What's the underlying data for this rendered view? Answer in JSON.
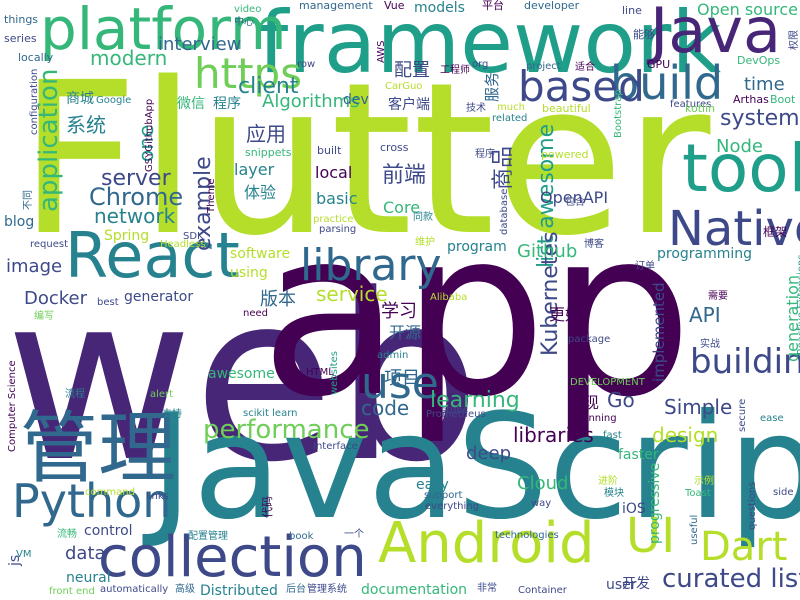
{
  "palette": {
    "dark_purple": "#440154",
    "purple": "#482677",
    "indigo": "#3e4989",
    "blue": "#31688e",
    "teal": "#26828e",
    "green_teal": "#1f9e89",
    "green": "#35b779",
    "light_green": "#6ece58",
    "yellow_green": "#b5de2b"
  },
  "words": [
    {
      "text": "Flutter",
      "color": "#b5de2b",
      "vertical": false
    },
    {
      "text": "web",
      "color": "#482677",
      "vertical": false
    },
    {
      "text": "app",
      "color": "#440154",
      "vertical": false
    },
    {
      "text": "JavaScript",
      "color": "#26828e",
      "vertical": false
    },
    {
      "text": "framework",
      "color": "#1f9e89",
      "vertical": false
    },
    {
      "text": "管理",
      "color": "#31688e",
      "vertical": false
    },
    {
      "text": "platform",
      "color": "#35b779",
      "vertical": false
    },
    {
      "text": "Java",
      "color": "#482677",
      "vertical": false
    },
    {
      "text": "React",
      "color": "#26828e",
      "vertical": false
    },
    {
      "text": "tool",
      "color": "#1f9e89",
      "vertical": false
    },
    {
      "text": "Android",
      "color": "#b5de2b",
      "vertical": false
    },
    {
      "text": "collection",
      "color": "#3e4989",
      "vertical": false
    },
    {
      "text": "Native",
      "color": "#3e4989",
      "vertical": false
    },
    {
      "text": "library",
      "color": "#31688e",
      "vertical": false
    },
    {
      "text": "Python",
      "color": "#31688e",
      "vertical": false
    },
    {
      "text": "build",
      "color": "#31688e",
      "vertical": false
    },
    {
      "text": "https",
      "color": "#6ece58",
      "vertical": false
    },
    {
      "text": "based",
      "color": "#3e4989",
      "vertical": false
    },
    {
      "text": "use",
      "color": "#31688e",
      "vertical": false
    },
    {
      "text": "UI",
      "color": "#b5de2b",
      "vertical": false
    },
    {
      "text": "Dart",
      "color": "#b5de2b",
      "vertical": false
    },
    {
      "text": "building",
      "color": "#3e4989",
      "vertical": false
    },
    {
      "text": "curated list",
      "color": "#3e4989",
      "vertical": false
    },
    {
      "text": "performance",
      "color": "#6ece58",
      "vertical": false
    },
    {
      "text": "application",
      "color": "#35b779",
      "vertical": true
    },
    {
      "text": "list awesome",
      "color": "#1f9e89",
      "vertical": true
    },
    {
      "text": "Kubernetes",
      "color": "#3e4989",
      "vertical": true
    },
    {
      "text": "Chrome",
      "color": "#31688e",
      "vertical": false
    },
    {
      "text": "server",
      "color": "#3e4989",
      "vertical": false
    },
    {
      "text": "network",
      "color": "#26828e",
      "vertical": false
    },
    {
      "text": "modern",
      "color": "#35b779",
      "vertical": false
    },
    {
      "text": "interview",
      "color": "#31688e",
      "vertical": false
    },
    {
      "text": "client",
      "color": "#26828e",
      "vertical": false
    },
    {
      "text": "Algorithms",
      "color": "#35b779",
      "vertical": false
    },
    {
      "text": "system",
      "color": "#3e4989",
      "vertical": false
    },
    {
      "text": "time",
      "color": "#31688e",
      "vertical": false
    },
    {
      "text": "Node",
      "color": "#35b779",
      "vertical": false
    },
    {
      "text": "example",
      "color": "#3e4989",
      "vertical": true
    },
    {
      "text": "one",
      "color": "#1f9e89",
      "vertical": true
    },
    {
      "text": "service",
      "color": "#b5de2b",
      "vertical": false
    },
    {
      "text": "learning",
      "color": "#35b779",
      "vertical": false
    },
    {
      "text": "Go",
      "color": "#3e4989",
      "vertical": false
    },
    {
      "text": "code",
      "color": "#31688e",
      "vertical": false
    },
    {
      "text": "libraries",
      "color": "#440154",
      "vertical": false
    },
    {
      "text": "design",
      "color": "#b5de2b",
      "vertical": false
    },
    {
      "text": "Simple",
      "color": "#3e4989",
      "vertical": false
    },
    {
      "text": "data",
      "color": "#3e4989",
      "vertical": false
    },
    {
      "text": "Docker",
      "color": "#3e4989",
      "vertical": false
    },
    {
      "text": "image",
      "color": "#3e4989",
      "vertical": false
    },
    {
      "text": "API",
      "color": "#31688e",
      "vertical": false
    },
    {
      "text": "Github",
      "color": "#35b779",
      "vertical": false
    },
    {
      "text": "Cloud",
      "color": "#35b779",
      "vertical": false
    },
    {
      "text": "deep",
      "color": "#3e4989",
      "vertical": false
    },
    {
      "text": "generation",
      "color": "#35b779",
      "vertical": true
    },
    {
      "text": "implemented",
      "color": "#3e4989",
      "vertical": true
    },
    {
      "text": "progressive",
      "color": "#35b779",
      "vertical": true
    },
    {
      "text": "前端",
      "color": "#3e4989",
      "vertical": false
    },
    {
      "text": "商品",
      "color": "#3e4989",
      "vertical": true
    },
    {
      "text": "应用",
      "color": "#3e4989",
      "vertical": false
    },
    {
      "text": "系统",
      "color": "#26828e",
      "vertical": false
    },
    {
      "text": "配置",
      "color": "#3e4989",
      "vertical": false
    },
    {
      "text": "版本",
      "color": "#31688e",
      "vertical": false
    },
    {
      "text": "学习",
      "color": "#440154",
      "vertical": false
    },
    {
      "text": "项目",
      "color": "#31688e",
      "vertical": false
    },
    {
      "text": "体验",
      "color": "#26828e",
      "vertical": false
    },
    {
      "text": "开源",
      "color": "#31688e",
      "vertical": false
    },
    {
      "text": "更好",
      "color": "#440154",
      "vertical": false
    },
    {
      "text": "实现",
      "color": "#440154",
      "vertical": false
    },
    {
      "text": "服务",
      "color": "#31688e",
      "vertical": true
    },
    {
      "text": "Core",
      "color": "#35b779",
      "vertical": false
    },
    {
      "text": "OpenAPI",
      "color": "#3e4989",
      "vertical": false
    },
    {
      "text": "basic",
      "color": "#26828e",
      "vertical": false
    },
    {
      "text": "local",
      "color": "#440154",
      "vertical": false
    },
    {
      "text": "layer",
      "color": "#26828e",
      "vertical": false
    },
    {
      "text": "Open source",
      "color": "#35b779",
      "vertical": false
    },
    {
      "text": "models",
      "color": "#26828e",
      "vertical": false
    },
    {
      "text": "dev",
      "color": "#31688e",
      "vertical": false
    },
    {
      "text": "software",
      "color": "#b5de2b",
      "vertical": false
    },
    {
      "text": "using",
      "color": "#b5de2b",
      "vertical": false
    },
    {
      "text": "generator",
      "color": "#3e4989",
      "vertical": false
    },
    {
      "text": "awesome",
      "color": "#35b779",
      "vertical": false
    },
    {
      "text": "program",
      "color": "#26828e",
      "vertical": false
    },
    {
      "text": "programming",
      "color": "#26828e",
      "vertical": false
    },
    {
      "text": "faster",
      "color": "#35b779",
      "vertical": false
    },
    {
      "text": "easy",
      "color": "#26828e",
      "vertical": false
    },
    {
      "text": "iOS",
      "color": "#3e4989",
      "vertical": false
    },
    {
      "text": "user",
      "color": "#3e4989",
      "vertical": false
    },
    {
      "text": "neural",
      "color": "#26828e",
      "vertical": false
    },
    {
      "text": "control",
      "color": "#3e4989",
      "vertical": false
    },
    {
      "text": "documentation",
      "color": "#35b779",
      "vertical": false
    },
    {
      "text": "Distributed",
      "color": "#26828e",
      "vertical": false
    },
    {
      "text": "js",
      "color": "#3e4989",
      "vertical": false
    },
    {
      "text": "开发",
      "color": "#3e4989",
      "vertical": false
    },
    {
      "text": "Spring",
      "color": "#b5de2b",
      "vertical": false
    },
    {
      "text": "blog",
      "color": "#31688e",
      "vertical": false
    },
    {
      "text": "客户端",
      "color": "#3e4989",
      "vertical": false
    },
    {
      "text": "商城",
      "color": "#26828e",
      "vertical": false
    },
    {
      "text": "微信",
      "color": "#35b779",
      "vertical": false
    },
    {
      "text": "程序",
      "color": "#26828e",
      "vertical": false
    },
    {
      "text": "features",
      "color": "#3e4989",
      "vertical": false
    },
    {
      "text": "Boot",
      "color": "#35b779",
      "vertical": false
    },
    {
      "text": "Arthas",
      "color": "#440154",
      "vertical": false
    },
    {
      "text": "kotlin",
      "color": "#6ece58",
      "vertical": false
    },
    {
      "text": "DevOps",
      "color": "#35b779",
      "vertical": false
    },
    {
      "text": "GPU",
      "color": "#440154",
      "vertical": false
    },
    {
      "text": "能够",
      "color": "#3e4989",
      "vertical": false
    },
    {
      "text": "line",
      "color": "#3e4989",
      "vertical": false
    },
    {
      "text": "平台",
      "color": "#440154",
      "vertical": false
    },
    {
      "text": "developer",
      "color": "#31688e",
      "vertical": false
    },
    {
      "text": "Vue",
      "color": "#440154",
      "vertical": false
    },
    {
      "text": "management",
      "color": "#31688e",
      "vertical": false
    },
    {
      "text": "video",
      "color": "#35b779",
      "vertical": false
    },
    {
      "text": "中心",
      "color": "#31688e",
      "vertical": false
    },
    {
      "text": "things",
      "color": "#31688e",
      "vertical": false
    },
    {
      "text": "series",
      "color": "#3e4989",
      "vertical": false
    },
    {
      "text": "locally",
      "color": "#31688e",
      "vertical": false
    },
    {
      "text": "Google",
      "color": "#26828e",
      "vertical": false
    },
    {
      "text": "snippets",
      "color": "#35b779",
      "vertical": false
    },
    {
      "text": "built",
      "color": "#3e4989",
      "vertical": false
    },
    {
      "text": "cross",
      "color": "#3e4989",
      "vertical": false
    },
    {
      "text": "powered",
      "color": "#b5de2b",
      "vertical": false
    },
    {
      "text": "beautiful",
      "color": "#b5de2b",
      "vertical": false
    },
    {
      "text": "related",
      "color": "#26828e",
      "vertical": false
    },
    {
      "text": "much",
      "color": "#b5de2b",
      "vertical": false
    },
    {
      "text": "技术",
      "color": "#3e4989",
      "vertical": false
    },
    {
      "text": "project",
      "color": "#31688e",
      "vertical": false
    },
    {
      "text": "适合",
      "color": "#440154",
      "vertical": false
    },
    {
      "text": "工程师",
      "color": "#440154",
      "vertical": false
    },
    {
      "text": "org",
      "color": "#3e4989",
      "vertical": false
    },
    {
      "text": "CarGuo",
      "color": "#b5de2b",
      "vertical": false
    },
    {
      "text": "row",
      "color": "#3e4989",
      "vertical": false
    },
    {
      "text": "practice",
      "color": "#b5de2b",
      "vertical": false
    },
    {
      "text": "parsing",
      "color": "#3e4989",
      "vertical": false
    },
    {
      "text": "同款",
      "color": "#26828e",
      "vertical": false
    },
    {
      "text": "维护",
      "color": "#b5de2b",
      "vertical": false
    },
    {
      "text": "博客",
      "color": "#3e4989",
      "vertical": false
    },
    {
      "text": "订单",
      "color": "#3e4989",
      "vertical": false
    },
    {
      "text": "包含",
      "color": "#3e4989",
      "vertical": false
    },
    {
      "text": "框架",
      "color": "#440154",
      "vertical": false
    },
    {
      "text": "request",
      "color": "#3e4989",
      "vertical": false
    },
    {
      "text": "SDK",
      "color": "#3e4989",
      "vertical": false
    },
    {
      "text": "Headless",
      "color": "#b5de2b",
      "vertical": false
    },
    {
      "text": "best",
      "color": "#3e4989",
      "vertical": false
    },
    {
      "text": "need",
      "color": "#440154",
      "vertical": false
    },
    {
      "text": "日常",
      "color": "#440154",
      "vertical": false
    },
    {
      "text": "需要",
      "color": "#440154",
      "vertical": false
    },
    {
      "text": "Alibaba",
      "color": "#b5de2b",
      "vertical": false
    },
    {
      "text": "编写",
      "color": "#6ece58",
      "vertical": false
    },
    {
      "text": "package",
      "color": "#3e4989",
      "vertical": false
    },
    {
      "text": "实战",
      "color": "#3e4989",
      "vertical": false
    },
    {
      "text": "admin",
      "color": "#26828e",
      "vertical": false
    },
    {
      "text": "websites",
      "color": "#1f9e89",
      "vertical": true
    },
    {
      "text": "HTML",
      "color": "#440154",
      "vertical": false
    },
    {
      "text": "alert",
      "color": "#6ece58",
      "vertical": false
    },
    {
      "text": "流程",
      "color": "#26828e",
      "vertical": false
    },
    {
      "text": "支持",
      "color": "#26828e",
      "vertical": false
    },
    {
      "text": "DEVELOPMENT",
      "color": "#6ece58",
      "vertical": false
    },
    {
      "text": "stubs",
      "color": "#3e4989",
      "vertical": false
    },
    {
      "text": "running",
      "color": "#440154",
      "vertical": false
    },
    {
      "text": "fast",
      "color": "#26828e",
      "vertical": false
    },
    {
      "text": "ease",
      "color": "#26828e",
      "vertical": false
    },
    {
      "text": "Prometheus",
      "color": "#3e4989",
      "vertical": false
    },
    {
      "text": "scikit learn",
      "color": "#26828e",
      "vertical": false
    },
    {
      "text": "Interface",
      "color": "#3e4989",
      "vertical": false
    },
    {
      "text": "everything",
      "color": "#3e4989",
      "vertical": false
    },
    {
      "text": "support",
      "color": "#31688e",
      "vertical": false
    },
    {
      "text": "way",
      "color": "#3e4989",
      "vertical": false
    },
    {
      "text": "模块",
      "color": "#26828e",
      "vertical": false
    },
    {
      "text": "进阶",
      "color": "#b5de2b",
      "vertical": false
    },
    {
      "text": "示例",
      "color": "#b5de2b",
      "vertical": false
    },
    {
      "text": "Toast",
      "color": "#35b779",
      "vertical": false
    },
    {
      "text": "questions",
      "color": "#3e4989",
      "vertical": true
    },
    {
      "text": "secure",
      "color": "#3e4989",
      "vertical": true
    },
    {
      "text": "side",
      "color": "#3e4989",
      "vertical": false
    },
    {
      "text": "links",
      "color": "#3e4989",
      "vertical": false
    },
    {
      "text": "command",
      "color": "#b5de2b",
      "vertical": false
    },
    {
      "text": "代码",
      "color": "#440154",
      "vertical": true
    },
    {
      "text": "book",
      "color": "#31688e",
      "vertical": false
    },
    {
      "text": "一个",
      "color": "#3e4989",
      "vertical": false
    },
    {
      "text": "technologies",
      "color": "#31688e",
      "vertical": false
    },
    {
      "text": "Container",
      "color": "#3e4989",
      "vertical": false
    },
    {
      "text": "非常",
      "color": "#3e4989",
      "vertical": false
    },
    {
      "text": "管理系统",
      "color": "#3e4989",
      "vertical": false
    },
    {
      "text": "后台",
      "color": "#31688e",
      "vertical": false
    },
    {
      "text": "高级",
      "color": "#31688e",
      "vertical": false
    },
    {
      "text": "automatically",
      "color": "#3e4989",
      "vertical": false
    },
    {
      "text": "front end",
      "color": "#6ece58",
      "vertical": false
    },
    {
      "text": "配置管理",
      "color": "#26828e",
      "vertical": false
    },
    {
      "text": "流畅",
      "color": "#35b779",
      "vertical": false
    },
    {
      "text": "VM",
      "color": "#26828e",
      "vertical": false
    },
    {
      "text": "useful",
      "color": "#31688e",
      "vertical": true
    },
    {
      "text": "Reactive Extensions",
      "color": "#1f9e89",
      "vertical": true
    },
    {
      "text": "Computer Science",
      "color": "#440154",
      "vertical": true
    },
    {
      "text": "configuration",
      "color": "#3e4989",
      "vertical": true
    },
    {
      "text": "GSYGithubApp",
      "color": "#440154",
      "vertical": true
    },
    {
      "text": "Theme",
      "color": "#440154",
      "vertical": true
    },
    {
      "text": "database",
      "color": "#3e4989",
      "vertical": true
    },
    {
      "text": "Bootstrap",
      "color": "#35b779",
      "vertical": true
    },
    {
      "text": "AWS",
      "color": "#440154",
      "vertical": true
    },
    {
      "text": "不同",
      "color": "#31688e",
      "vertical": true
    },
    {
      "text": "权限",
      "color": "#3e4989",
      "vertical": true
    },
    {
      "text": "程序",
      "color": "#3e4989",
      "vertical": false
    }
  ]
}
